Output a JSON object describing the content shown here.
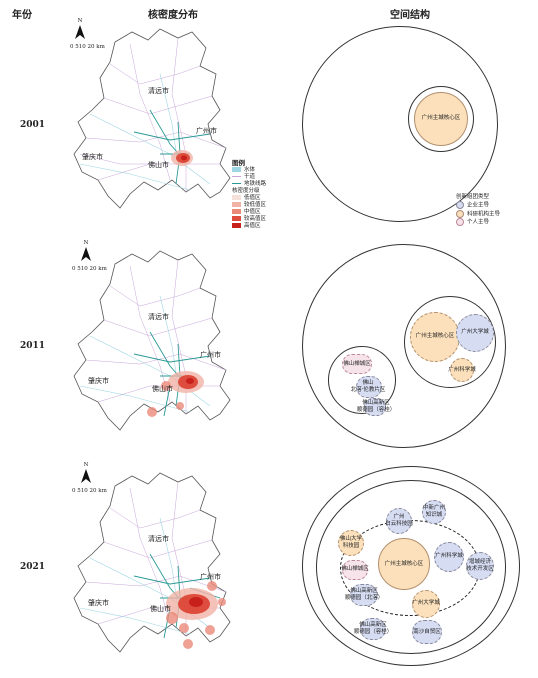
{
  "headers": {
    "year": "年份",
    "density": "核密度分布",
    "structure": "空间结构"
  },
  "years": [
    "2001",
    "2011",
    "2021"
  ],
  "north": "N",
  "scale": "0 510 20 km",
  "cities": {
    "qingyuan": "清远市",
    "guangzhou": "广州市",
    "zhaoqing": "肇庆市",
    "foshan": "佛山市"
  },
  "legend": {
    "title": "图例",
    "items": [
      "水体",
      "干道",
      "地铁线路"
    ],
    "density_title": "核密度分级",
    "levels": [
      "低值区",
      "较低值区",
      "中值区",
      "较高值区",
      "高值区"
    ],
    "level_colors": [
      "#f6e0da",
      "#f1b3a6",
      "#ea8a79",
      "#dd4c3c",
      "#c8201a"
    ]
  },
  "types": {
    "title": "创新组团类型",
    "items": [
      "企业主导",
      "科研机构主导",
      "个人主导"
    ],
    "colors": [
      "#d6dcf2",
      "#fbe0bb",
      "#f7e3ea"
    ]
  },
  "s2001": {
    "core": "广州主城核心区"
  },
  "s2011": {
    "core": "广州主城核心区",
    "univ": "广州大学城",
    "science": "广州科学城",
    "fsmain": "佛山禅城区",
    "fsbj": "佛山\n北滘·伦教片区",
    "fshigh": "佛山高新区\n顺德园（容桂）"
  },
  "s2021": {
    "core": "广州主城核心区",
    "science": "广州科学城",
    "univ": "广州大学城",
    "baiyun": "广州\n白云科技园",
    "knowledge": "中新广州\n知识城",
    "fsuniv": "佛山大学\n科技园",
    "fsmain": "佛山禅城区",
    "fshigh1": "佛山高新区\n顺德园（北滘）",
    "fshigh2": "佛山高新区\n顺德园（容桂）",
    "zengcheng": "增城经济\n技术开发区",
    "nansha": "南沙自贸区"
  }
}
